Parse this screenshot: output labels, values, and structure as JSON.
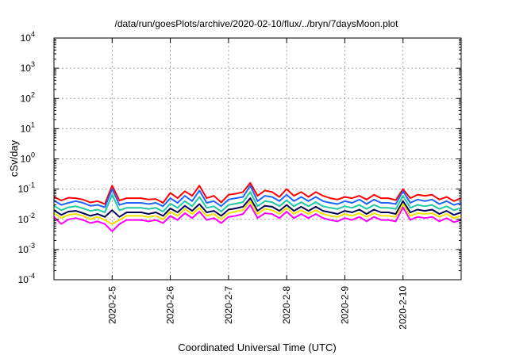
{
  "chart_data": {
    "type": "line",
    "title": "/data/run/goesPlots/archive/2020-02-10/flux/../bryn/7daysMoon.plot",
    "xlabel": "Coordinated Universal Time (UTC)",
    "ylabel": "cSv/day",
    "y_scale": "log",
    "ylim": [
      0.0001,
      10000
    ],
    "y_ticks": [
      {
        "exp": "-4",
        "value": 0.0001
      },
      {
        "exp": "-3",
        "value": 0.001
      },
      {
        "exp": "-2",
        "value": 0.01
      },
      {
        "exp": "-1",
        "value": 0.1
      },
      {
        "exp": "0",
        "value": 1
      },
      {
        "exp": "1",
        "value": 10
      },
      {
        "exp": "2",
        "value": 100
      },
      {
        "exp": "3",
        "value": 1000
      },
      {
        "exp": "4",
        "value": 10000
      }
    ],
    "y_tick_base": "10",
    "xlim": [
      "2020-02-04T00:00",
      "2020-02-11T00:00"
    ],
    "x_ticks": [
      "2020-2-5",
      "2020-2-6",
      "2020-2-7",
      "2020-2-8",
      "2020-2-9",
      "2020-2-10"
    ],
    "x_tick_dates": [
      "2020-02-05T00:00",
      "2020-02-06T00:00",
      "2020-02-07T00:00",
      "2020-02-08T00:00",
      "2020-02-09T00:00",
      "2020-02-10T00:00"
    ],
    "grid": true,
    "x": [
      "2020-02-04T00:00",
      "2020-02-04T03:00",
      "2020-02-04T06:00",
      "2020-02-04T09:00",
      "2020-02-04T12:00",
      "2020-02-04T15:00",
      "2020-02-04T18:00",
      "2020-02-04T21:00",
      "2020-02-05T00:00",
      "2020-02-05T03:00",
      "2020-02-05T06:00",
      "2020-02-05T09:00",
      "2020-02-05T12:00",
      "2020-02-05T15:00",
      "2020-02-05T18:00",
      "2020-02-05T21:00",
      "2020-02-06T00:00",
      "2020-02-06T03:00",
      "2020-02-06T06:00",
      "2020-02-06T09:00",
      "2020-02-06T12:00",
      "2020-02-06T15:00",
      "2020-02-06T18:00",
      "2020-02-06T21:00",
      "2020-02-07T00:00",
      "2020-02-07T03:00",
      "2020-02-07T06:00",
      "2020-02-07T09:00",
      "2020-02-07T12:00",
      "2020-02-07T15:00",
      "2020-02-07T18:00",
      "2020-02-07T21:00",
      "2020-02-08T00:00",
      "2020-02-08T03:00",
      "2020-02-08T06:00",
      "2020-02-08T09:00",
      "2020-02-08T12:00",
      "2020-02-08T15:00",
      "2020-02-08T18:00",
      "2020-02-08T21:00",
      "2020-02-09T00:00",
      "2020-02-09T03:00",
      "2020-02-09T06:00",
      "2020-02-09T09:00",
      "2020-02-09T12:00",
      "2020-02-09T15:00",
      "2020-02-09T18:00",
      "2020-02-09T21:00",
      "2020-02-10T00:00",
      "2020-02-10T03:00",
      "2020-02-10T06:00",
      "2020-02-10T09:00",
      "2020-02-10T12:00",
      "2020-02-10T15:00",
      "2020-02-10T18:00",
      "2020-02-10T21:00",
      "2020-02-11T00:00"
    ],
    "series": [
      {
        "color": "#ff0000",
        "values": [
          0.055,
          0.042,
          0.052,
          0.05,
          0.045,
          0.036,
          0.04,
          0.032,
          0.13,
          0.042,
          0.05,
          0.05,
          0.05,
          0.045,
          0.047,
          0.035,
          0.075,
          0.05,
          0.085,
          0.06,
          0.13,
          0.05,
          0.06,
          0.036,
          0.065,
          0.07,
          0.08,
          0.16,
          0.06,
          0.09,
          0.08,
          0.055,
          0.1,
          0.06,
          0.08,
          0.055,
          0.08,
          0.06,
          0.05,
          0.045,
          0.055,
          0.05,
          0.06,
          0.045,
          0.065,
          0.05,
          0.05,
          0.043,
          0.1,
          0.05,
          0.065,
          0.06,
          0.065,
          0.045,
          0.055,
          0.04,
          0.05
        ]
      },
      {
        "color": "#1e64ff",
        "values": [
          0.042,
          0.03,
          0.035,
          0.04,
          0.035,
          0.028,
          0.03,
          0.025,
          0.1,
          0.03,
          0.035,
          0.035,
          0.035,
          0.032,
          0.035,
          0.027,
          0.05,
          0.035,
          0.06,
          0.04,
          0.09,
          0.035,
          0.04,
          0.027,
          0.045,
          0.05,
          0.055,
          0.13,
          0.04,
          0.06,
          0.055,
          0.04,
          0.065,
          0.04,
          0.055,
          0.04,
          0.055,
          0.04,
          0.035,
          0.032,
          0.04,
          0.035,
          0.045,
          0.032,
          0.045,
          0.035,
          0.035,
          0.032,
          0.085,
          0.035,
          0.045,
          0.04,
          0.045,
          0.032,
          0.04,
          0.03,
          0.035
        ]
      },
      {
        "color": "#20c8a0",
        "values": [
          0.028,
          0.02,
          0.025,
          0.027,
          0.023,
          0.019,
          0.021,
          0.017,
          0.065,
          0.02,
          0.024,
          0.024,
          0.024,
          0.022,
          0.024,
          0.018,
          0.033,
          0.024,
          0.04,
          0.027,
          0.055,
          0.024,
          0.027,
          0.018,
          0.03,
          0.033,
          0.037,
          0.08,
          0.027,
          0.04,
          0.037,
          0.027,
          0.043,
          0.027,
          0.037,
          0.027,
          0.037,
          0.027,
          0.024,
          0.022,
          0.027,
          0.024,
          0.03,
          0.022,
          0.03,
          0.024,
          0.024,
          0.022,
          0.06,
          0.024,
          0.03,
          0.027,
          0.03,
          0.022,
          0.027,
          0.02,
          0.024
        ]
      },
      {
        "color": "#000055",
        "values": [
          0.02,
          0.014,
          0.018,
          0.019,
          0.016,
          0.013,
          0.015,
          0.012,
          0.02,
          0.012,
          0.017,
          0.017,
          0.017,
          0.015,
          0.017,
          0.013,
          0.023,
          0.017,
          0.028,
          0.019,
          0.032,
          0.017,
          0.019,
          0.013,
          0.021,
          0.023,
          0.026,
          0.05,
          0.019,
          0.028,
          0.026,
          0.019,
          0.03,
          0.019,
          0.026,
          0.019,
          0.026,
          0.019,
          0.017,
          0.015,
          0.019,
          0.017,
          0.021,
          0.015,
          0.021,
          0.017,
          0.017,
          0.015,
          0.04,
          0.017,
          0.021,
          0.019,
          0.021,
          0.015,
          0.019,
          0.014,
          0.017
        ]
      },
      {
        "color": "#f0e000",
        "values": [
          0.016,
          0.011,
          0.014,
          0.015,
          0.013,
          0.01,
          0.012,
          0.0095,
          0.007,
          0.0095,
          0.013,
          0.013,
          0.013,
          0.012,
          0.013,
          0.01,
          0.018,
          0.013,
          0.022,
          0.015,
          0.024,
          0.013,
          0.015,
          0.01,
          0.016,
          0.018,
          0.02,
          0.04,
          0.015,
          0.022,
          0.02,
          0.015,
          0.024,
          0.015,
          0.02,
          0.015,
          0.02,
          0.015,
          0.013,
          0.012,
          0.015,
          0.013,
          0.016,
          0.012,
          0.016,
          0.013,
          0.013,
          0.012,
          0.032,
          0.013,
          0.016,
          0.015,
          0.016,
          0.012,
          0.015,
          0.011,
          0.013
        ]
      },
      {
        "color": "#ff00ff",
        "values": [
          0.012,
          0.007,
          0.01,
          0.011,
          0.0095,
          0.0075,
          0.0085,
          0.007,
          0.004,
          0.007,
          0.0095,
          0.0095,
          0.0095,
          0.0085,
          0.0095,
          0.0075,
          0.013,
          0.0095,
          0.016,
          0.011,
          0.018,
          0.0095,
          0.011,
          0.0075,
          0.012,
          0.013,
          0.015,
          0.03,
          0.011,
          0.016,
          0.015,
          0.011,
          0.018,
          0.011,
          0.015,
          0.011,
          0.015,
          0.011,
          0.0095,
          0.0085,
          0.011,
          0.0095,
          0.012,
          0.0085,
          0.012,
          0.0095,
          0.0095,
          0.0085,
          0.025,
          0.0095,
          0.012,
          0.011,
          0.012,
          0.0085,
          0.011,
          0.008,
          0.0095
        ]
      }
    ]
  }
}
